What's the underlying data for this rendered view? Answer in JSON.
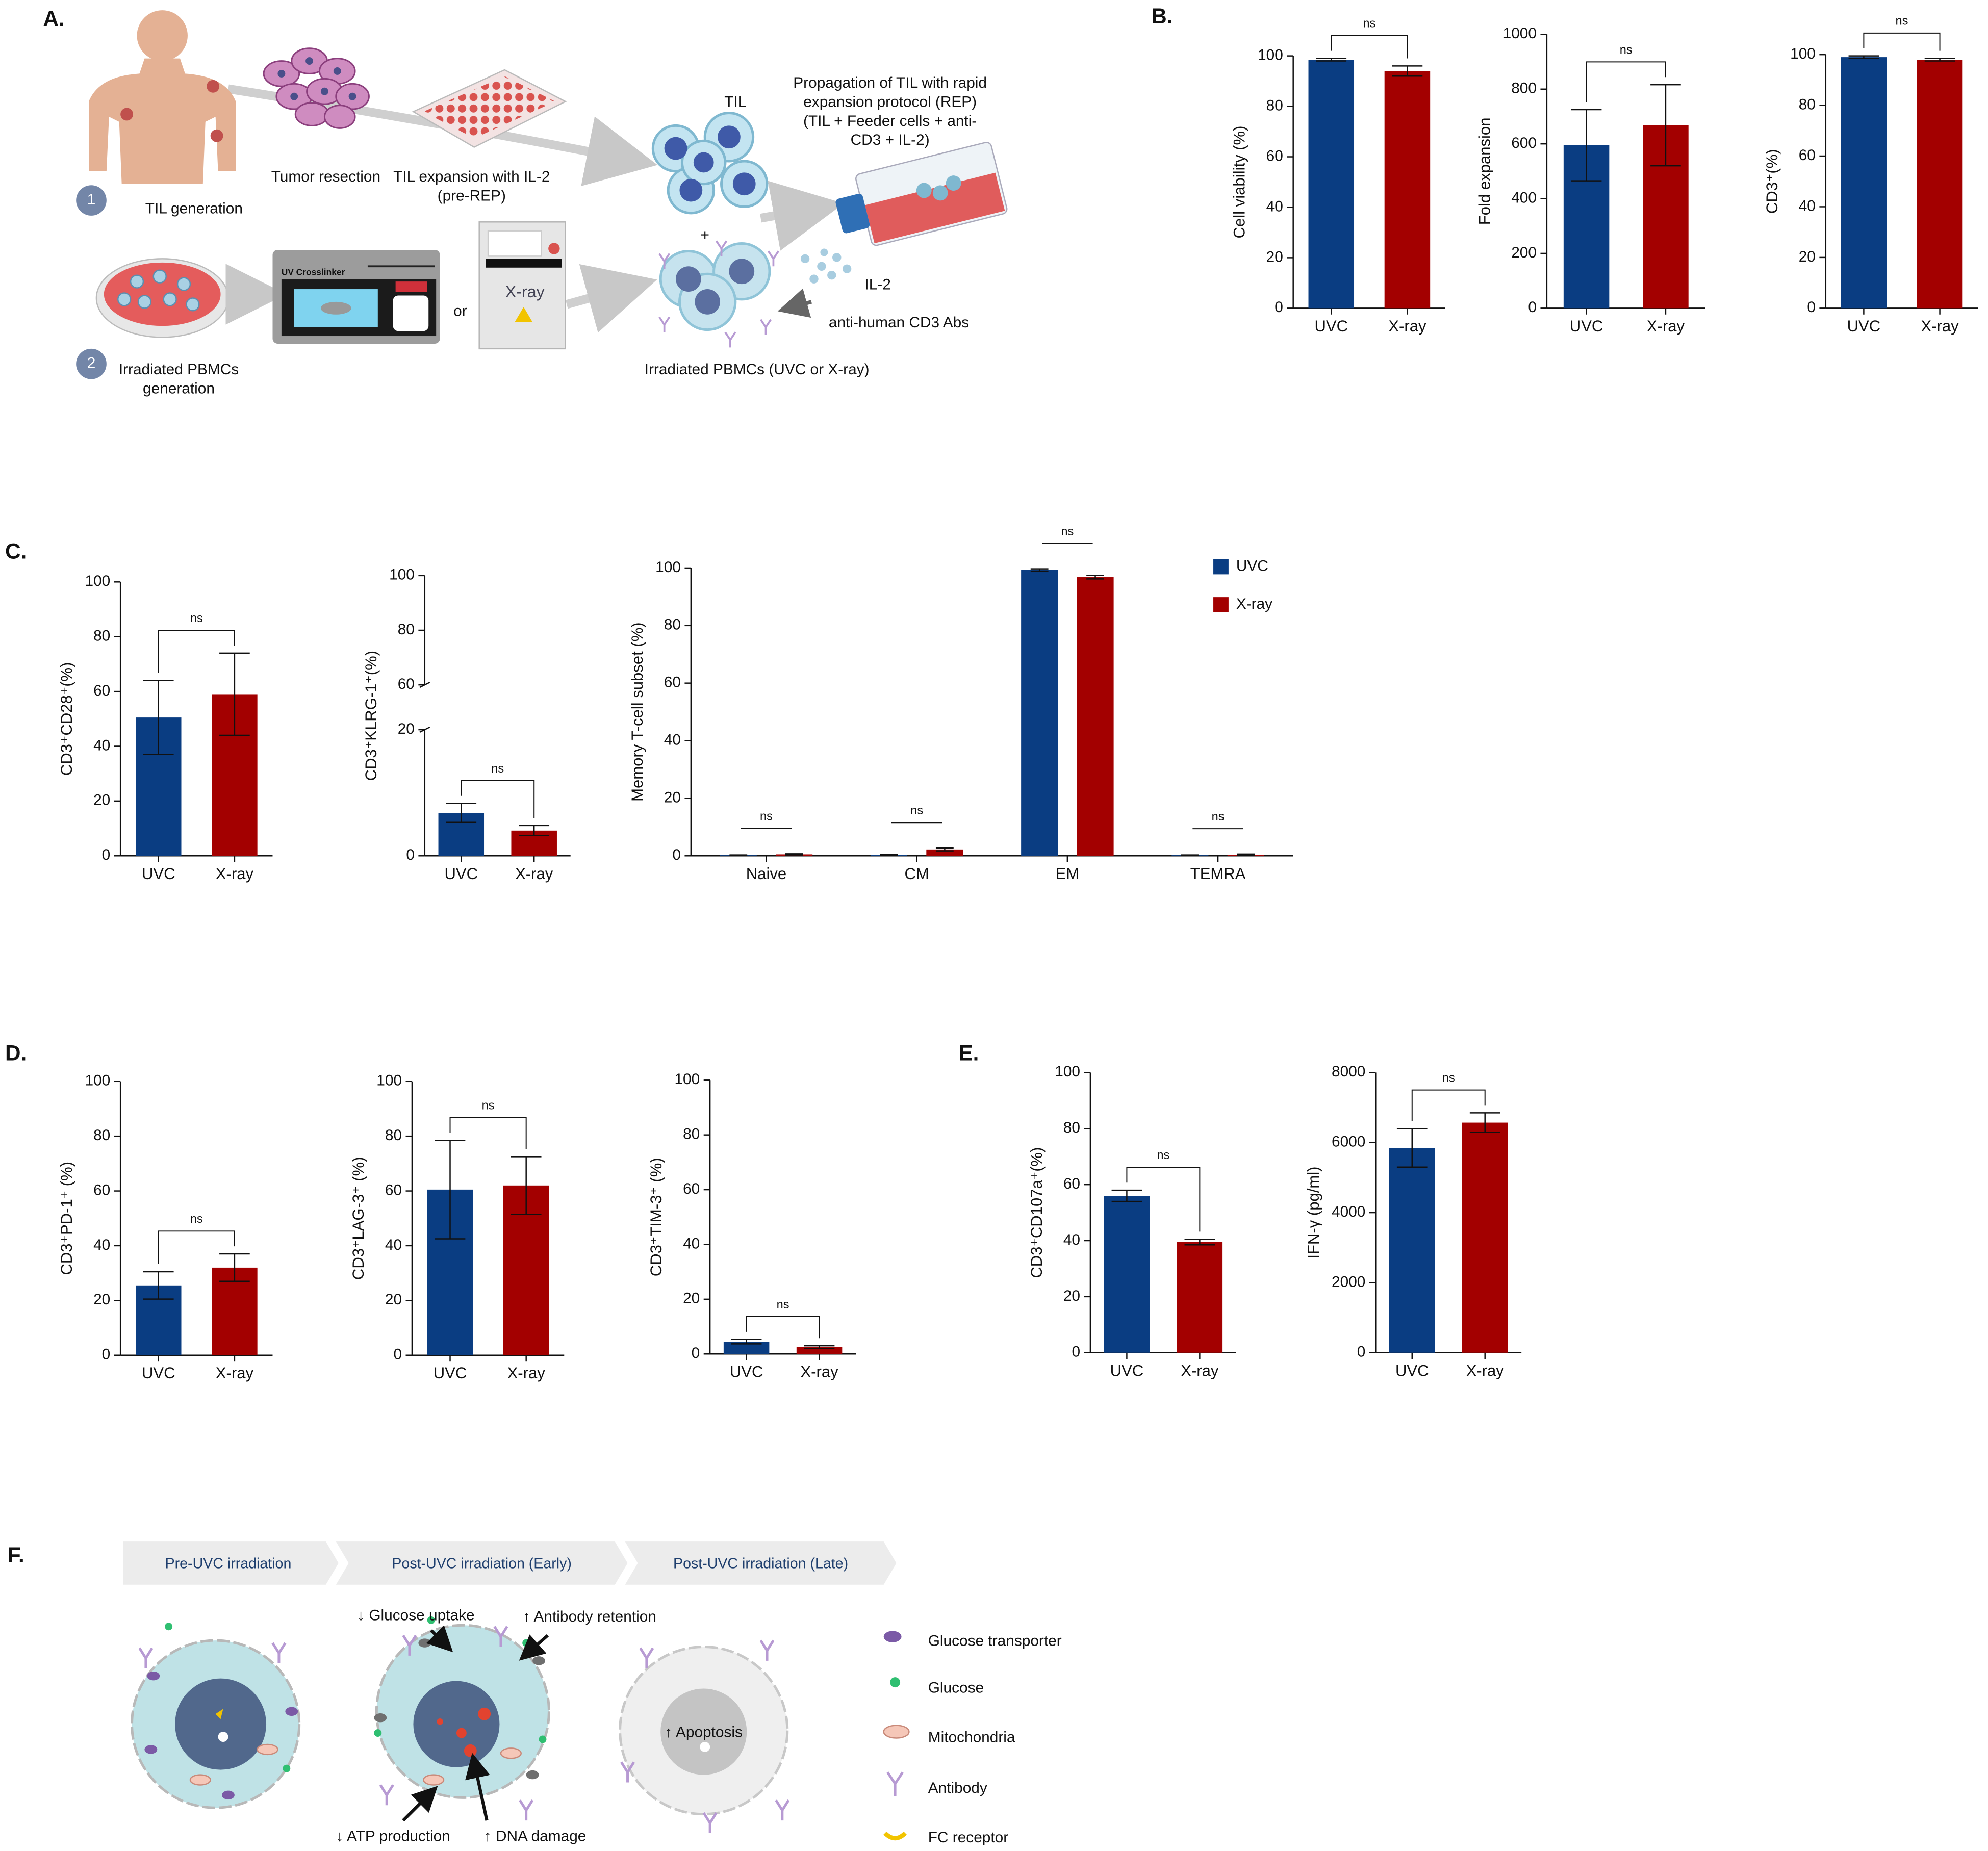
{
  "panel_labels": [
    "A.",
    "B.",
    "C.",
    "D.",
    "E.",
    "F."
  ],
  "panel_a": {
    "tumor_resection": "Tumor resection",
    "til_expansion": [
      "TIL expansion with IL-2",
      "(pre-REP)"
    ],
    "step_1": "1",
    "til_generation": "TIL generation",
    "til": "TIL",
    "rep": [
      "Propagation of TIL with rapid",
      "expansion protocol (REP)",
      "(TIL + Feeder cells + anti-",
      "CD3 + IL-2)"
    ],
    "uv_crosslinker": "UV Crosslinker",
    "or": "or",
    "xray": "X-ray",
    "plus": "+",
    "il2": "IL-2",
    "anti_cd3": "anti-human CD3 Abs",
    "step_2": "2",
    "pbmc_generation": [
      "Irradiated PBMCs",
      "generation"
    ],
    "irradiated_pbmcs": "Irradiated PBMCs (UVC or X-ray)"
  },
  "panel_f": {
    "stages": [
      "Pre-UVC irradiation",
      "Post-UVC irradiation (Early)",
      "Post-UVC irradiation (Late)"
    ],
    "effects": [
      "↓ Glucose uptake",
      "↑ Antibody retention",
      "↓ ATP production",
      "↑ DNA damage",
      "↑ Apoptosis"
    ],
    "legend": [
      "Glucose transporter",
      "Glucose",
      "Mitochondria",
      "Antibody",
      "FC receptor"
    ]
  },
  "chart_data": [
    {
      "type": "bar",
      "ylabel": "Cell viability (%)",
      "categories": [
        "UVC",
        "X-ray"
      ],
      "values": [
        98.5,
        94
      ],
      "errors": [
        0.5,
        2
      ],
      "colors": [
        "#0a3d82",
        "#a30000"
      ],
      "ylim": [
        0,
        100
      ],
      "yticks": [
        0,
        20,
        40,
        60,
        80,
        100
      ],
      "annotations": [
        "ns"
      ]
    },
    {
      "type": "bar",
      "ylabel": "Fold expansion",
      "categories": [
        "UVC",
        "X-ray"
      ],
      "values": [
        595,
        668
      ],
      "errors": [
        130,
        148
      ],
      "colors": [
        "#0a3d82",
        "#a30000"
      ],
      "ylim": [
        0,
        1000
      ],
      "yticks": [
        0,
        200,
        400,
        600,
        800,
        1000
      ],
      "annotations": [
        "ns"
      ]
    },
    {
      "type": "bar",
      "ylabel": "CD3⁺(%)",
      "categories": [
        "UVC",
        "X-ray"
      ],
      "values": [
        99,
        98
      ],
      "errors": [
        0.5,
        0.5
      ],
      "colors": [
        "#0a3d82",
        "#a30000"
      ],
      "ylim": [
        0,
        100
      ],
      "yticks": [
        0,
        20,
        40,
        60,
        80,
        100
      ],
      "annotations": [
        "ns"
      ]
    },
    {
      "type": "bar",
      "ylabel": "CD3⁺CD28⁺(%)",
      "categories": [
        "UVC",
        "X-ray"
      ],
      "values": [
        50.5,
        59
      ],
      "errors": [
        13.5,
        15
      ],
      "colors": [
        "#0a3d82",
        "#a30000"
      ],
      "ylim": [
        0,
        100
      ],
      "yticks": [
        0,
        20,
        40,
        60,
        80,
        100
      ],
      "annotations": [
        "ns"
      ]
    },
    {
      "type": "bar",
      "ylabel": "CD3⁺KLRG-1⁺(%)",
      "categories": [
        "UVC",
        "X-ray"
      ],
      "values": [
        6.8,
        4
      ],
      "errors": [
        1.5,
        0.8
      ],
      "colors": [
        "#0a3d82",
        "#a30000"
      ],
      "ylim": [
        0,
        100
      ],
      "ybreak": [
        20,
        60
      ],
      "yticks": [
        0,
        20,
        60,
        80,
        100
      ],
      "annotations": [
        "ns"
      ]
    },
    {
      "type": "grouped_bar",
      "ylabel": "Memory T-cell subset (%)",
      "categories": [
        "Naive",
        "CM",
        "EM",
        "TEMRA"
      ],
      "series": [
        {
          "name": "UVC",
          "color": "#0a3d82",
          "values": [
            0.2,
            0.3,
            99.3,
            0.2
          ],
          "errors": [
            0.1,
            0.2,
            0.4,
            0.1
          ]
        },
        {
          "name": "X-ray",
          "color": "#a30000",
          "values": [
            0.5,
            2.2,
            96.8,
            0.4
          ],
          "errors": [
            0.2,
            0.5,
            0.6,
            0.2
          ]
        }
      ],
      "ylim": [
        0,
        100
      ],
      "yticks": [
        0,
        20,
        40,
        60,
        80,
        100
      ],
      "legend": "upper right",
      "annotations": [
        "ns",
        "ns",
        "ns",
        "ns"
      ]
    },
    {
      "type": "bar",
      "ylabel": "CD3⁺PD-1⁺ (%)",
      "categories": [
        "UVC",
        "X-ray"
      ],
      "values": [
        25.5,
        32
      ],
      "errors": [
        5,
        5
      ],
      "colors": [
        "#0a3d82",
        "#a30000"
      ],
      "ylim": [
        0,
        100
      ],
      "yticks": [
        0,
        20,
        40,
        60,
        80,
        100
      ],
      "annotations": [
        "ns"
      ]
    },
    {
      "type": "bar",
      "ylabel": "CD3⁺LAG-3⁺ (%)",
      "categories": [
        "UVC",
        "X-ray"
      ],
      "values": [
        60.5,
        62
      ],
      "errors": [
        18,
        10.5
      ],
      "colors": [
        "#0a3d82",
        "#a30000"
      ],
      "ylim": [
        0,
        100
      ],
      "yticks": [
        0,
        20,
        40,
        60,
        80,
        100
      ],
      "annotations": [
        "ns"
      ]
    },
    {
      "type": "bar",
      "ylabel": "CD3⁺TIM-3⁺ (%)",
      "categories": [
        "UVC",
        "X-ray"
      ],
      "values": [
        4.5,
        2.5
      ],
      "errors": [
        0.8,
        0.5
      ],
      "colors": [
        "#0a3d82",
        "#a30000"
      ],
      "ylim": [
        0,
        100
      ],
      "yticks": [
        0,
        20,
        40,
        60,
        80,
        100
      ],
      "annotations": [
        "ns"
      ]
    },
    {
      "type": "bar",
      "ylabel": "CD3⁺CD107a⁺(%)",
      "categories": [
        "UVC",
        "X-ray"
      ],
      "values": [
        56,
        39.5
      ],
      "errors": [
        2,
        1
      ],
      "colors": [
        "#0a3d82",
        "#a30000"
      ],
      "ylim": [
        0,
        100
      ],
      "yticks": [
        0,
        20,
        40,
        60,
        80,
        100
      ],
      "annotations": [
        "ns"
      ]
    },
    {
      "type": "bar",
      "ylabel": "IFN-γ (pg/ml)",
      "categories": [
        "UVC",
        "X-ray"
      ],
      "values": [
        5850,
        6570
      ],
      "errors": [
        550,
        280
      ],
      "colors": [
        "#0a3d82",
        "#a30000"
      ],
      "ylim": [
        0,
        8000
      ],
      "yticks": [
        0,
        2000,
        4000,
        6000,
        8000
      ],
      "annotations": [
        "ns"
      ]
    }
  ]
}
